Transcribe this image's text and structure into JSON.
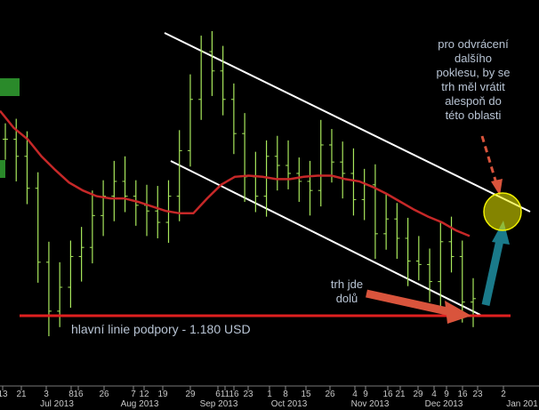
{
  "chart_data": {
    "type": "line",
    "title": "",
    "xlabel": "",
    "ylabel": "",
    "x_ticks": [
      "13",
      "21",
      "3",
      "8",
      "16",
      "26",
      "7",
      "12",
      "19",
      "29",
      "6",
      "11",
      "16",
      "23",
      "1",
      "8",
      "15",
      "26",
      "4",
      "9",
      "16",
      "21",
      "29",
      "4",
      "9",
      "16",
      "23",
      "2"
    ],
    "x_month_labels": [
      "Jul 2013",
      "Aug 2013",
      "Sep 2013",
      "Oct 2013",
      "Nov 2013",
      "Dec 2013",
      "Jan 201"
    ],
    "series": [
      {
        "values": [
          1335,
          1320,
          1292,
          1227,
          1184,
          1205,
          1232,
          1240,
          1268,
          1285,
          1298,
          1285,
          1277,
          1272,
          1262,
          1285,
          1325,
          1370,
          1412,
          1395,
          1370,
          1340,
          1302,
          1285,
          1320,
          1312,
          1305,
          1298,
          1290,
          1330,
          1315,
          1305,
          1282,
          1295,
          1252,
          1265,
          1248,
          1228,
          1225,
          1210,
          1245,
          1232,
          1192,
          1195
        ]
      },
      {
        "values": [
          1360,
          1345,
          1335,
          1320,
          1308,
          1297,
          1290,
          1285,
          1283,
          1283,
          1280,
          1276,
          1272,
          1270,
          1270,
          1283,
          1295,
          1302,
          1303,
          1302,
          1300,
          1300,
          1302,
          1303,
          1303,
          1300,
          1298,
          1293,
          1287,
          1280,
          1273,
          1267,
          1262,
          1255,
          1250
        ]
      }
    ],
    "support_level": 1180,
    "trend_channel": "descending",
    "colors": {
      "price": "#a8e85c",
      "moving_average": "#c62828",
      "support": "#e02020",
      "channel": "#ffffff",
      "arrow_down": "#d9543c",
      "arrow_up": "#1a7a8a",
      "highlight": "#f0f000"
    }
  },
  "annotations": {
    "support_label": "hlavní linie podpory - 1.180 USD",
    "market_down": [
      "trh jde",
      "dolů"
    ],
    "reversal_note": [
      "pro odvrácení",
      "dalšího",
      "poklesu, by se",
      "trh měl vrátit",
      "alespoň do",
      "této oblasti"
    ]
  }
}
